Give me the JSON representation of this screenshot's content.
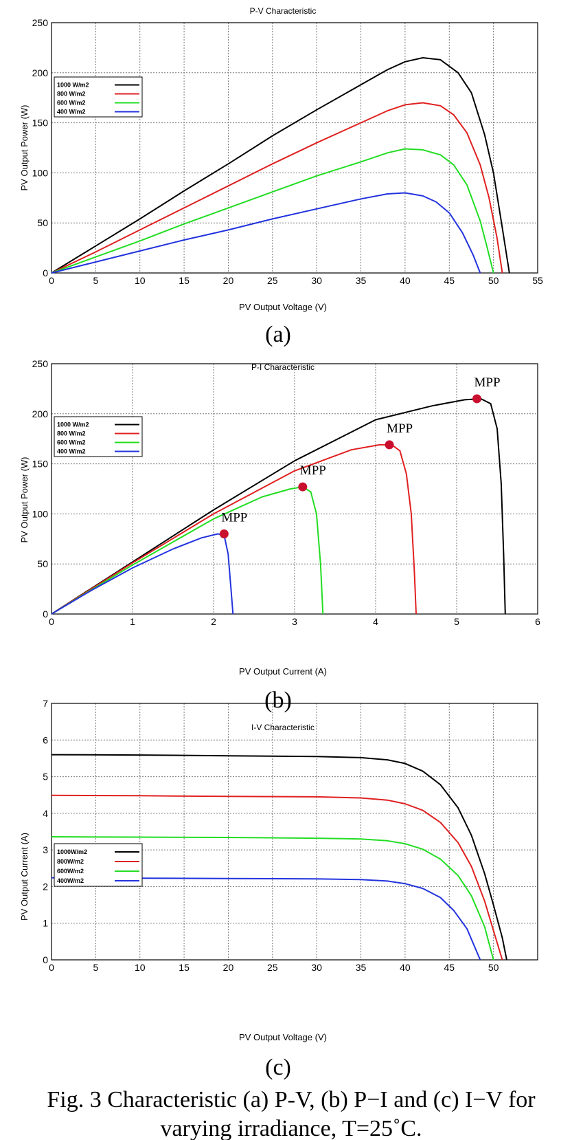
{
  "chart_data": [
    {
      "type": "line",
      "title": "P-V Characteristic",
      "xlabel": "PV Output Voltage (V)",
      "ylabel": "PV Output Power (W)",
      "xlim": [
        0,
        55
      ],
      "ylim": [
        0,
        250
      ],
      "xticks": [
        0,
        5,
        10,
        15,
        20,
        25,
        30,
        35,
        40,
        45,
        50,
        55
      ],
      "yticks": [
        0,
        50,
        100,
        150,
        200,
        250
      ],
      "grid": true,
      "legend_position": "upper-left",
      "panel_label": "(a)",
      "series": [
        {
          "name": "1000 W/m2",
          "color": "#000000",
          "x": [
            0,
            5,
            10,
            15,
            20,
            25,
            30,
            35,
            38,
            40,
            42,
            44,
            46,
            47.5,
            49,
            50,
            51,
            51.8
          ],
          "y": [
            0,
            27,
            54,
            82,
            109,
            137,
            163,
            188,
            203,
            211,
            215,
            213,
            200,
            180,
            138,
            100,
            45,
            0
          ]
        },
        {
          "name": "800 W/m2",
          "color": "#e02020",
          "x": [
            0,
            5,
            10,
            15,
            20,
            25,
            30,
            35,
            38,
            40,
            42,
            44,
            45.5,
            47,
            48.5,
            49.5,
            50.4,
            51
          ],
          "y": [
            0,
            21,
            43,
            65,
            87,
            109,
            130,
            150,
            162,
            168,
            170,
            167,
            158,
            140,
            108,
            75,
            35,
            0
          ]
        },
        {
          "name": "600 W/m2",
          "color": "#22dd22",
          "x": [
            0,
            5,
            10,
            15,
            20,
            25,
            30,
            35,
            38,
            40,
            42,
            44,
            45.5,
            47,
            48.5,
            49.3,
            50
          ],
          "y": [
            0,
            16,
            32,
            49,
            65,
            81,
            97,
            111,
            120,
            124,
            123,
            118,
            108,
            88,
            52,
            25,
            0
          ]
        },
        {
          "name": "400 W/m2",
          "color": "#2233dd",
          "x": [
            0,
            5,
            10,
            15,
            20,
            25,
            30,
            35,
            38,
            40,
            42,
            43.5,
            45,
            46.5,
            47.7,
            48.5
          ],
          "y": [
            0,
            11,
            22,
            33,
            43,
            54,
            64,
            74,
            79,
            80,
            77,
            71,
            60,
            40,
            18,
            0
          ]
        }
      ]
    },
    {
      "type": "line",
      "title": "P-I Characteristic",
      "xlabel": "PV Output Current (A)",
      "ylabel": "PV Output Power (W)",
      "xlim": [
        0,
        6
      ],
      "ylim": [
        0,
        250
      ],
      "xticks": [
        0,
        1,
        2,
        3,
        4,
        5,
        6
      ],
      "yticks": [
        0,
        50,
        100,
        150,
        200,
        250
      ],
      "grid": true,
      "legend_position": "upper-left",
      "panel_label": "(b)",
      "annotations": [
        {
          "text": "MPP",
          "x": 5.25,
          "y": 215
        },
        {
          "text": "MPP",
          "x": 4.17,
          "y": 169
        },
        {
          "text": "MPP",
          "x": 3.1,
          "y": 127
        },
        {
          "text": "MPP",
          "x": 2.13,
          "y": 80
        }
      ],
      "series": [
        {
          "name": "1000 W/m2",
          "color": "#000000",
          "x": [
            0,
            1,
            2,
            3,
            4,
            4.7,
            5.1,
            5.3,
            5.42,
            5.5,
            5.55,
            5.58,
            5.6
          ],
          "y": [
            0,
            52,
            104,
            153,
            194,
            208,
            214,
            215,
            210,
            185,
            130,
            60,
            0
          ]
        },
        {
          "name": "800 W/m2",
          "color": "#e02020",
          "x": [
            0,
            1,
            2,
            3,
            3.7,
            4.05,
            4.2,
            4.3,
            4.38,
            4.44,
            4.48,
            4.5
          ],
          "y": [
            0,
            51,
            100,
            143,
            164,
            169,
            169,
            163,
            140,
            100,
            40,
            0
          ]
        },
        {
          "name": "600 W/m2",
          "color": "#22dd22",
          "x": [
            0,
            1,
            2,
            2.6,
            2.95,
            3.1,
            3.2,
            3.27,
            3.32,
            3.35
          ],
          "y": [
            0,
            49,
            95,
            117,
            125,
            127,
            122,
            100,
            50,
            0
          ]
        },
        {
          "name": "400 W/m2",
          "color": "#2233dd",
          "x": [
            0,
            0.5,
            1,
            1.5,
            1.85,
            2.05,
            2.13,
            2.18,
            2.21,
            2.24
          ],
          "y": [
            0,
            24,
            46,
            65,
            76,
            80,
            79,
            60,
            30,
            0
          ]
        }
      ],
      "markers": {
        "color": "#c8102e",
        "points": [
          [
            5.25,
            215
          ],
          [
            4.17,
            169
          ],
          [
            3.1,
            127
          ],
          [
            2.13,
            80
          ]
        ]
      }
    },
    {
      "type": "line",
      "title": "I-V Characteristic",
      "xlabel": "PV Output Voltage (V)",
      "ylabel": "PV Output Current (A)",
      "xlim": [
        0,
        55
      ],
      "ylim": [
        0,
        7
      ],
      "xticks": [
        0,
        5,
        10,
        15,
        20,
        25,
        30,
        35,
        40,
        45,
        50
      ],
      "yticks": [
        0,
        1,
        2,
        3,
        4,
        5,
        6,
        7
      ],
      "grid": true,
      "legend_position": "lower-left",
      "panel_label": "(c)",
      "series": [
        {
          "name": "1000W/m2",
          "color": "#000000",
          "x": [
            0,
            10,
            20,
            30,
            35,
            38,
            40,
            42,
            44,
            46,
            47.5,
            49,
            50,
            51,
            51.5
          ],
          "y": [
            5.6,
            5.59,
            5.57,
            5.55,
            5.52,
            5.46,
            5.36,
            5.15,
            4.78,
            4.15,
            3.4,
            2.35,
            1.5,
            0.6,
            0
          ]
        },
        {
          "name": "800W/m2",
          "color": "#e02020",
          "x": [
            0,
            10,
            20,
            30,
            35,
            38,
            40,
            42,
            44,
            46,
            47.5,
            49,
            50,
            51
          ],
          "y": [
            4.49,
            4.48,
            4.46,
            4.45,
            4.42,
            4.36,
            4.26,
            4.08,
            3.75,
            3.2,
            2.55,
            1.6,
            0.8,
            0
          ]
        },
        {
          "name": "600W/m2",
          "color": "#22dd22",
          "x": [
            0,
            10,
            20,
            30,
            35,
            38,
            40,
            42,
            44,
            46,
            47.5,
            49,
            50
          ],
          "y": [
            3.36,
            3.35,
            3.34,
            3.32,
            3.3,
            3.25,
            3.17,
            3.02,
            2.75,
            2.3,
            1.75,
            0.9,
            0
          ]
        },
        {
          "name": "400W/m2",
          "color": "#2233dd",
          "x": [
            0,
            10,
            20,
            30,
            35,
            38,
            40,
            42,
            44,
            45.5,
            47,
            48.5
          ],
          "y": [
            2.24,
            2.23,
            2.22,
            2.21,
            2.19,
            2.15,
            2.08,
            1.95,
            1.7,
            1.35,
            0.85,
            0
          ]
        }
      ]
    }
  ],
  "caption": {
    "line1": "Fig. 3 Characteristic (a) P-V, (b) P−I and (c) I−V for",
    "line2": "varying irradiance, T=25˚C."
  }
}
